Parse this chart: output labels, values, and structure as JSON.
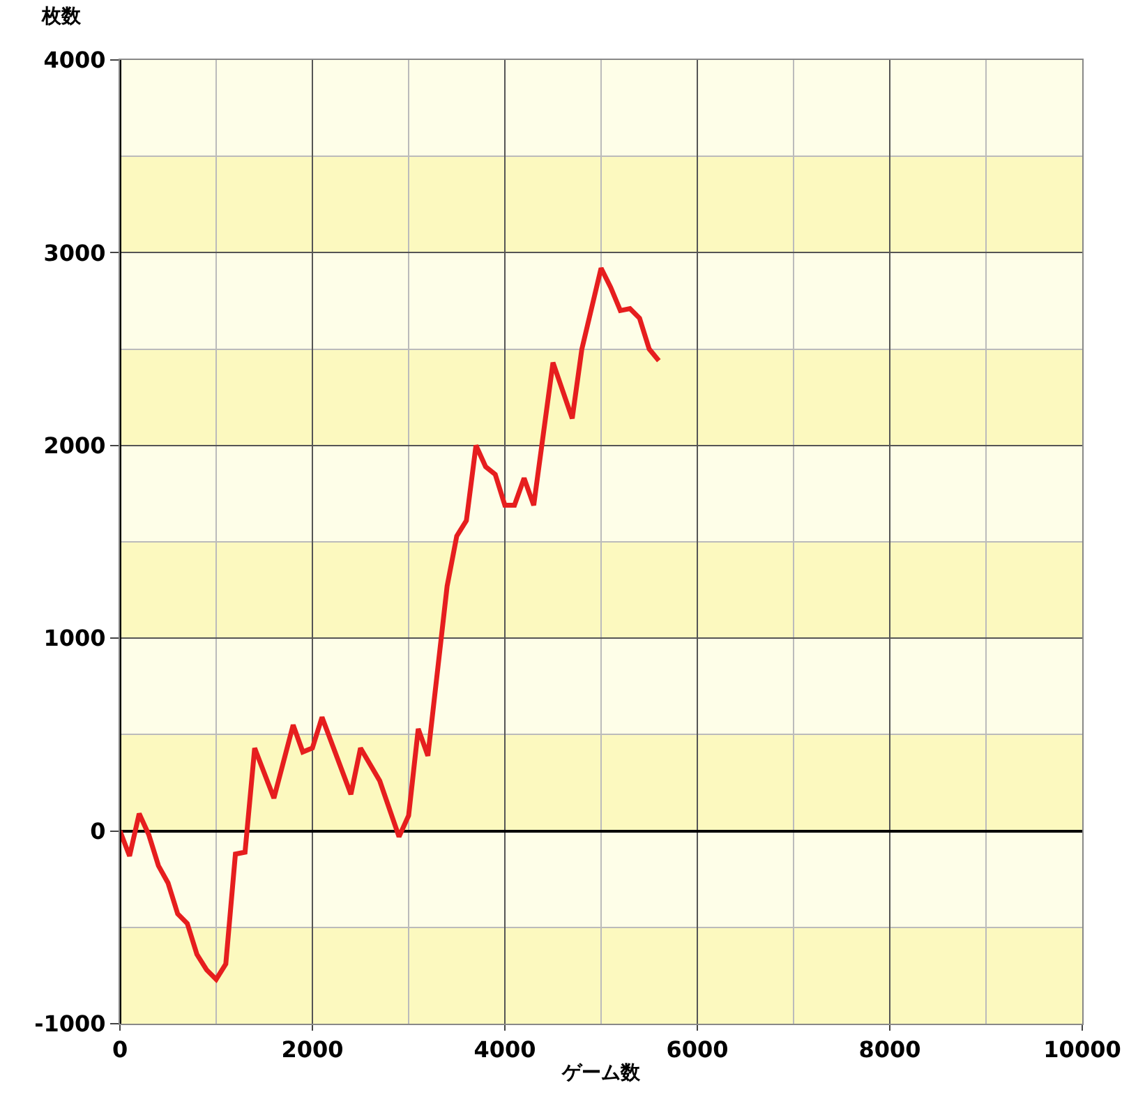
{
  "chart_data": {
    "type": "line",
    "xlabel": "ゲーム数",
    "ylabel": "枚数",
    "xlim": [
      0,
      10000
    ],
    "xticks": [
      0,
      2000,
      4000,
      6000,
      8000,
      10000
    ],
    "ylim": [
      -1000,
      4000
    ],
    "yticks": [
      -1000,
      0,
      1000,
      2000,
      3000,
      4000
    ],
    "grid": true,
    "marker": "none",
    "line_style": "solid",
    "bands": [
      {
        "axis": "y",
        "from": -1000,
        "to": -500,
        "color": "#fcf9bf"
      },
      {
        "axis": "y",
        "from": 0,
        "to": 500,
        "color": "#fcf9bf"
      },
      {
        "axis": "y",
        "from": 1000,
        "to": 1500,
        "color": "#fcf9bf"
      },
      {
        "axis": "y",
        "from": 2000,
        "to": 2500,
        "color": "#fcf9bf"
      },
      {
        "axis": "y",
        "from": 3000,
        "to": 3500,
        "color": "#fcf9bf"
      }
    ],
    "series": [
      {
        "color": "#e61e1e",
        "x": [
          0,
          100,
          200,
          300,
          400,
          500,
          600,
          700,
          800,
          900,
          1000,
          1100,
          1200,
          1300,
          1400,
          1600,
          1800,
          1900,
          2000,
          2100,
          2400,
          2500,
          2700,
          2900,
          3000,
          3100,
          3200,
          3400,
          3500,
          3600,
          3700,
          3800,
          3900,
          4000,
          4100,
          4200,
          4300,
          4500,
          4700,
          4800,
          5000,
          5100,
          5200,
          5300,
          5400,
          5500,
          5600
        ],
        "values": [
          0,
          -130,
          90,
          -20,
          -180,
          -270,
          -430,
          -480,
          -640,
          -720,
          -770,
          -690,
          -120,
          -110,
          430,
          170,
          550,
          410,
          430,
          590,
          190,
          430,
          260,
          -30,
          80,
          530,
          390,
          1270,
          1530,
          1610,
          2000,
          1890,
          1850,
          1690,
          1690,
          1830,
          1690,
          2430,
          2140,
          2500,
          2920,
          2820,
          2700,
          2710,
          2660,
          2500,
          2440
        ]
      }
    ]
  }
}
